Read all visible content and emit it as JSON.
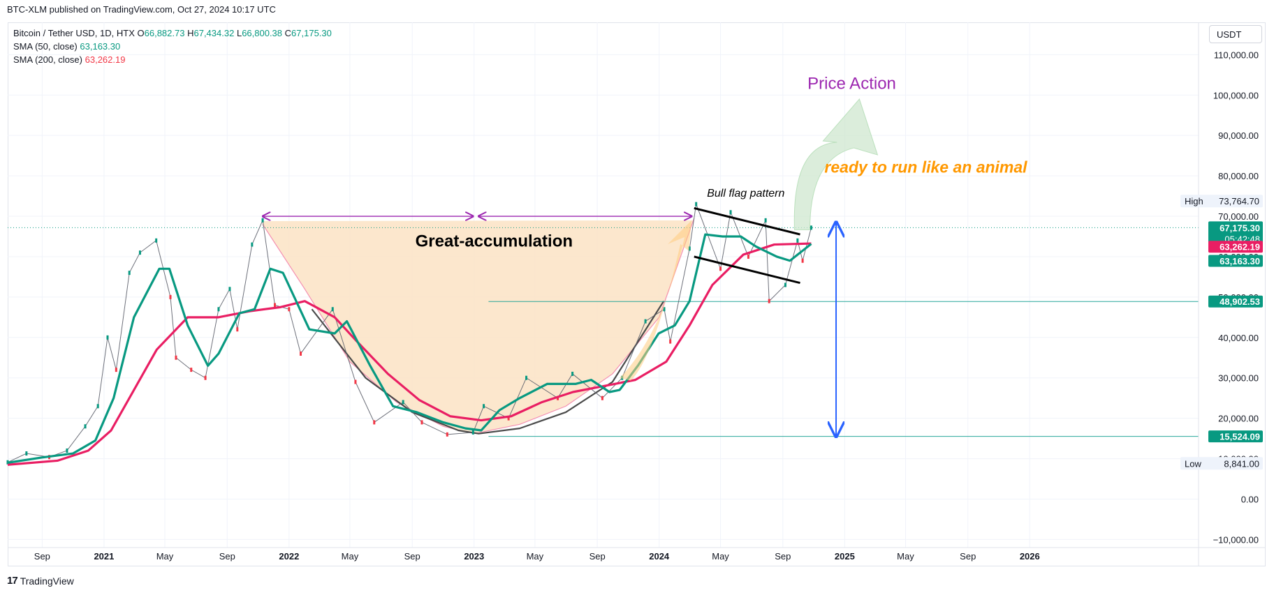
{
  "header": {
    "published": "BTC-XLM published on TradingView.com, Oct 27, 2024 10:17 UTC"
  },
  "legend": {
    "symbol": "Bitcoin / Tether USD, 1D, HTX",
    "o_label": "O",
    "o_value": "66,882.73",
    "h_label": "H",
    "h_value": "67,434.32",
    "l_label": "L",
    "l_value": "66,800.38",
    "c_label": "C",
    "c_value": "67,175.30",
    "sma50_label": "SMA (50, close)",
    "sma50_value": "63,163.30",
    "sma200_label": "SMA (200, close)",
    "sma200_value": "63,262.19"
  },
  "toolbar": {
    "currency": "USDT"
  },
  "footer": {
    "brand": "TradingView",
    "brand_logo": "17"
  },
  "annotations": {
    "great_accumulation": "Great-accumulation",
    "price_action": "Price Action",
    "ready_to_run": "ready to run like an animal",
    "bull_flag": "Bull flag pattern"
  },
  "colors": {
    "sma50": "#089981",
    "sma200": "#e91e63",
    "candle_up": "#089981",
    "candle_down": "#f23645",
    "accumulation_fill": "#fbe3c4",
    "price_action_fill": "#cfe8cf",
    "price_action_text": "#9c27b0",
    "ready_text": "#ff9800",
    "range_arrow": "#2962ff",
    "bracket_arrow": "#9c27b0"
  },
  "price_badges": {
    "high_label": "High",
    "high_value": "73,764.70",
    "low_label": "Low",
    "low_value": "8,841.00",
    "last": "67,175.30",
    "countdown": "05:42:48",
    "sma200": "63,262.19",
    "sma50": "63,163.30",
    "level_upper": "48,902.53",
    "level_lower": "15,524.09"
  },
  "chart_data": {
    "type": "line",
    "title": "Bitcoin / Tether USD, 1D, HTX",
    "y_axis": {
      "ticks": [
        -10000,
        0,
        10000,
        20000,
        30000,
        40000,
        50000,
        60000,
        70000,
        80000,
        90000,
        100000,
        110000
      ],
      "tick_labels": [
        "−10,000.00",
        "0.00",
        "10,000.00",
        "20,000.00",
        "30,000.00",
        "40,000.00",
        "50,000.00",
        "60,000.00",
        "70,000.00",
        "80,000.00",
        "90,000.00",
        "100,000.00",
        "110,000.00"
      ],
      "range": [
        -12000,
        118000
      ]
    },
    "x_axis": {
      "range": [
        "2020-06-25",
        "2026-11-30"
      ],
      "ticks": [
        {
          "date": "2020-09-01",
          "label": "Sep",
          "year": false
        },
        {
          "date": "2021-01-01",
          "label": "2021",
          "year": true
        },
        {
          "date": "2021-05-01",
          "label": "May",
          "year": false
        },
        {
          "date": "2021-09-01",
          "label": "Sep",
          "year": false
        },
        {
          "date": "2022-01-01",
          "label": "2022",
          "year": true
        },
        {
          "date": "2022-05-01",
          "label": "May",
          "year": false
        },
        {
          "date": "2022-09-01",
          "label": "Sep",
          "year": false
        },
        {
          "date": "2023-01-01",
          "label": "2023",
          "year": true
        },
        {
          "date": "2023-05-01",
          "label": "May",
          "year": false
        },
        {
          "date": "2023-09-01",
          "label": "Sep",
          "year": false
        },
        {
          "date": "2024-01-01",
          "label": "2024",
          "year": true
        },
        {
          "date": "2024-05-01",
          "label": "May",
          "year": false
        },
        {
          "date": "2024-09-01",
          "label": "Sep",
          "year": false
        },
        {
          "date": "2025-01-01",
          "label": "2025",
          "year": true
        },
        {
          "date": "2025-05-01",
          "label": "May",
          "year": false
        },
        {
          "date": "2025-09-01",
          "label": "Sep",
          "year": false
        },
        {
          "date": "2026-01-01",
          "label": "2026",
          "year": true
        }
      ]
    },
    "grid": true,
    "series": [
      {
        "name": "BTC/USDT price (approx.)",
        "x": [
          "2020-06-25",
          "2020-08-01",
          "2020-09-15",
          "2020-10-20",
          "2020-11-25",
          "2020-12-20",
          "2021-01-08",
          "2021-01-25",
          "2021-02-20",
          "2021-03-13",
          "2021-04-14",
          "2021-05-12",
          "2021-05-23",
          "2021-06-22",
          "2021-07-20",
          "2021-08-15",
          "2021-09-06",
          "2021-09-21",
          "2021-10-20",
          "2021-11-10",
          "2021-12-04",
          "2022-01-01",
          "2022-01-24",
          "2022-03-28",
          "2022-05-12",
          "2022-06-18",
          "2022-08-14",
          "2022-09-20",
          "2022-11-09",
          "2022-12-30",
          "2023-01-20",
          "2023-03-10",
          "2023-04-14",
          "2023-06-15",
          "2023-07-14",
          "2023-09-11",
          "2023-10-20",
          "2023-12-05",
          "2024-01-11",
          "2024-01-23",
          "2024-03-01",
          "2024-03-14",
          "2024-05-01",
          "2024-05-21",
          "2024-06-25",
          "2024-07-29",
          "2024-08-05",
          "2024-09-06",
          "2024-09-30",
          "2024-10-10",
          "2024-10-27"
        ],
        "y": [
          9100,
          11300,
          10400,
          12000,
          18000,
          23000,
          40000,
          32000,
          56000,
          61000,
          64000,
          50000,
          35000,
          32000,
          30000,
          47000,
          52000,
          42000,
          63000,
          69000,
          48000,
          47000,
          36000,
          47000,
          29000,
          19000,
          24000,
          19000,
          16000,
          16500,
          23000,
          20000,
          30000,
          25000,
          31000,
          25000,
          30000,
          44000,
          47000,
          39000,
          62000,
          73000,
          57000,
          71000,
          60000,
          69000,
          49000,
          53000,
          64000,
          59000,
          67175
        ]
      },
      {
        "name": "SMA (50, close)",
        "x": [
          "2020-06-25",
          "2020-09-01",
          "2020-11-01",
          "2020-12-15",
          "2021-01-20",
          "2021-03-01",
          "2021-04-20",
          "2021-05-10",
          "2021-06-15",
          "2021-07-25",
          "2021-08-15",
          "2021-09-25",
          "2021-10-25",
          "2021-11-25",
          "2021-12-20",
          "2022-02-10",
          "2022-04-01",
          "2022-04-25",
          "2022-06-10",
          "2022-07-25",
          "2022-09-10",
          "2022-11-01",
          "2022-12-15",
          "2023-01-15",
          "2023-02-20",
          "2023-04-01",
          "2023-05-25",
          "2023-07-20",
          "2023-08-20",
          "2023-09-25",
          "2023-10-15",
          "2023-11-20",
          "2023-12-31",
          "2024-02-01",
          "2024-03-01",
          "2024-04-01",
          "2024-05-05",
          "2024-06-10",
          "2024-07-10",
          "2024-08-20",
          "2024-09-15",
          "2024-10-27"
        ],
        "y": [
          9000,
          10300,
          11300,
          14500,
          25000,
          45000,
          57000,
          57000,
          43000,
          33000,
          36000,
          46000,
          47000,
          57000,
          56000,
          42000,
          41000,
          44000,
          33000,
          23000,
          21500,
          19000,
          17500,
          17000,
          22000,
          25000,
          28500,
          28500,
          29500,
          26500,
          27000,
          33000,
          41000,
          43000,
          49000,
          65500,
          65000,
          65000,
          62500,
          60000,
          59000,
          63163
        ]
      },
      {
        "name": "SMA (200, close)",
        "x": [
          "2020-06-25",
          "2020-10-01",
          "2020-12-01",
          "2021-01-15",
          "2021-03-01",
          "2021-04-15",
          "2021-06-15",
          "2021-08-15",
          "2021-10-15",
          "2021-12-15",
          "2022-02-01",
          "2022-04-01",
          "2022-05-15",
          "2022-07-15",
          "2022-09-15",
          "2022-11-15",
          "2023-01-15",
          "2023-03-15",
          "2023-05-15",
          "2023-07-15",
          "2023-09-15",
          "2023-11-15",
          "2024-01-15",
          "2024-03-01",
          "2024-04-15",
          "2024-06-15",
          "2024-08-15",
          "2024-10-27"
        ],
        "y": [
          8500,
          9500,
          12000,
          17000,
          27000,
          37000,
          45000,
          45000,
          46500,
          47500,
          49000,
          45000,
          39000,
          31000,
          24500,
          20500,
          19500,
          20500,
          24000,
          26500,
          28000,
          29500,
          34000,
          43000,
          53000,
          60500,
          63000,
          63262
        ]
      }
    ],
    "annotations": {
      "levels": [
        48902.53,
        15524.09
      ],
      "high": 73764.7,
      "low": 8841.0,
      "last": 67175.3
    }
  }
}
